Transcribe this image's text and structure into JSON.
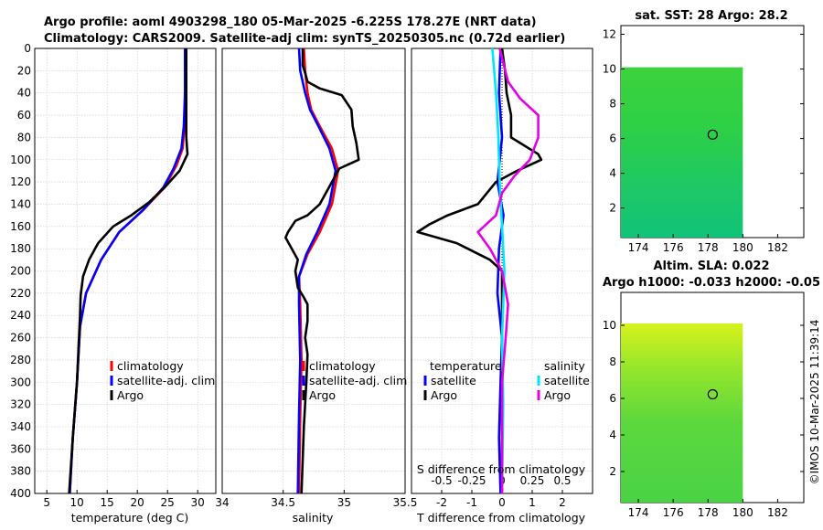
{
  "titles": {
    "line1": "Argo profile: aoml 4903298_180 05-Mar-2025 -6.225S 178.27E (NRT data)",
    "line2": "Climatology: CARS2009. Satellite-adj clim: synTS_20250305.nc (0.72d earlier)"
  },
  "map_titles": {
    "sst": "sat. SST: 28 Argo: 28.2",
    "sla1": "Altim. SLA: 0.022",
    "sla2": "Argo h1000: -0.033 h2000: -0.05"
  },
  "credit": "©IMOS 10-Mar-2025 11:39:14",
  "colors": {
    "climatology": "#ff0000",
    "satellite": "#0000ff",
    "argo": "#000000",
    "sat_salinity": "#00e5ff",
    "argo_salinity": "#e600e6"
  },
  "chart_data": [
    {
      "type": "line",
      "name": "temperature",
      "xlabel": "temperature (deg C)",
      "xlim": [
        3,
        33
      ],
      "xticks": [
        "5",
        "10",
        "15",
        "20",
        "25",
        "30"
      ],
      "ylim": [
        400,
        0
      ],
      "yticks": [
        "0",
        "20",
        "40",
        "60",
        "80",
        "100",
        "120",
        "140",
        "160",
        "180",
        "200",
        "220",
        "240",
        "260",
        "280",
        "300",
        "320",
        "340",
        "360",
        "380",
        "400"
      ],
      "grid": true,
      "legend": [
        "climatology",
        "satellite-adj. clim",
        "Argo"
      ],
      "series": [
        {
          "name": "climatology",
          "points": [
            [
              28,
              0
            ],
            [
              28,
              40
            ],
            [
              27.8,
              70
            ],
            [
              27.5,
              90
            ],
            [
              26.5,
              105
            ],
            [
              24.5,
              125
            ],
            [
              21,
              145
            ],
            [
              17,
              165
            ],
            [
              14,
              190
            ],
            [
              11.5,
              220
            ],
            [
              10.5,
              250
            ],
            [
              10,
              300
            ],
            [
              9.3,
              350
            ],
            [
              8.8,
              400
            ]
          ]
        },
        {
          "name": "satellite-adj. clim",
          "points": [
            [
              27.9,
              0
            ],
            [
              27.9,
              40
            ],
            [
              27.7,
              70
            ],
            [
              27.3,
              90
            ],
            [
              26,
              108
            ],
            [
              24.3,
              125
            ],
            [
              21,
              145
            ],
            [
              17,
              165
            ],
            [
              14,
              190
            ],
            [
              11.5,
              220
            ],
            [
              10.5,
              250
            ],
            [
              10,
              300
            ],
            [
              9.3,
              350
            ],
            [
              8.8,
              400
            ]
          ]
        },
        {
          "name": "Argo",
          "points": [
            [
              28.1,
              0
            ],
            [
              28.1,
              50
            ],
            [
              28.1,
              80
            ],
            [
              28.3,
              95
            ],
            [
              27,
              110
            ],
            [
              24.5,
              125
            ],
            [
              22,
              138
            ],
            [
              19,
              150
            ],
            [
              16,
              160
            ],
            [
              13.5,
              175
            ],
            [
              12,
              190
            ],
            [
              11,
              205
            ],
            [
              10.6,
              222
            ],
            [
              10.5,
              240
            ],
            [
              10,
              300
            ],
            [
              9.3,
              350
            ],
            [
              8.7,
              400
            ]
          ]
        }
      ]
    },
    {
      "type": "line",
      "name": "salinity",
      "xlabel": "salinity",
      "xlim": [
        34,
        35.5
      ],
      "xticks": [
        "34",
        "34.5",
        "35",
        "35.5"
      ],
      "ylim": [
        400,
        0
      ],
      "grid": true,
      "legend": [
        "climatology",
        "satellite-adj. clim",
        "Argo"
      ],
      "series": [
        {
          "name": "climatology",
          "points": [
            [
              34.67,
              0
            ],
            [
              34.68,
              20
            ],
            [
              34.7,
              40
            ],
            [
              34.73,
              55
            ],
            [
              34.8,
              70
            ],
            [
              34.9,
              90
            ],
            [
              34.95,
              110
            ],
            [
              34.9,
              140
            ],
            [
              34.8,
              165
            ],
            [
              34.7,
              185
            ],
            [
              34.63,
              205
            ],
            [
              34.64,
              230
            ],
            [
              34.65,
              280
            ],
            [
              34.64,
              330
            ],
            [
              34.63,
              400
            ]
          ]
        },
        {
          "name": "satellite-adj. clim",
          "points": [
            [
              34.63,
              0
            ],
            [
              34.64,
              20
            ],
            [
              34.68,
              40
            ],
            [
              34.72,
              55
            ],
            [
              34.79,
              70
            ],
            [
              34.88,
              90
            ],
            [
              34.93,
              110
            ],
            [
              34.88,
              140
            ],
            [
              34.78,
              165
            ],
            [
              34.69,
              185
            ],
            [
              34.63,
              205
            ],
            [
              34.63,
              230
            ],
            [
              34.64,
              280
            ],
            [
              34.63,
              330
            ],
            [
              34.62,
              400
            ]
          ]
        },
        {
          "name": "Argo",
          "points": [
            [
              34.66,
              0
            ],
            [
              34.66,
              15
            ],
            [
              34.68,
              22
            ],
            [
              34.7,
              30
            ],
            [
              34.8,
              36
            ],
            [
              34.98,
              42
            ],
            [
              35.06,
              55
            ],
            [
              35.07,
              70
            ],
            [
              35.1,
              85
            ],
            [
              35.12,
              100
            ],
            [
              34.96,
              108
            ],
            [
              34.9,
              120
            ],
            [
              34.8,
              140
            ],
            [
              34.7,
              150
            ],
            [
              34.6,
              155
            ],
            [
              34.54,
              165
            ],
            [
              34.52,
              170
            ],
            [
              34.56,
              178
            ],
            [
              34.62,
              190
            ],
            [
              34.6,
              200
            ],
            [
              34.62,
              215
            ],
            [
              34.66,
              222
            ],
            [
              34.7,
              230
            ],
            [
              34.7,
              245
            ],
            [
              34.68,
              260
            ],
            [
              34.7,
              275
            ],
            [
              34.69,
              300
            ],
            [
              34.67,
              340
            ],
            [
              34.65,
              400
            ]
          ]
        }
      ]
    },
    {
      "type": "line",
      "name": "difference",
      "xlabel": "T difference from climatology",
      "xlabel_top": "S difference from climatology",
      "xlim": [
        -3,
        3
      ],
      "xticks": [
        "-2",
        "-1",
        "0",
        "1",
        "2"
      ],
      "xticks_top": [
        "-0.5",
        "-0.25",
        "0",
        "0.25",
        "0.5"
      ],
      "ylim": [
        400,
        0
      ],
      "grid": true,
      "legend_temperature": {
        "title": "temperature",
        "items": [
          "satellite",
          "Argo"
        ]
      },
      "legend_salinity": {
        "title": "salinity",
        "items": [
          "satellite",
          "Argo"
        ]
      },
      "series": [
        {
          "name": "temperature satellite",
          "points": [
            [
              -0.05,
              0
            ],
            [
              -0.1,
              40
            ],
            [
              0,
              80
            ],
            [
              -0.15,
              120
            ],
            [
              0.05,
              150
            ],
            [
              -0.1,
              180
            ],
            [
              -0.15,
              220
            ],
            [
              0,
              260
            ],
            [
              -0.05,
              300
            ],
            [
              -0.1,
              350
            ],
            [
              -0.05,
              400
            ]
          ]
        },
        {
          "name": "temperature Argo",
          "points": [
            [
              0,
              0
            ],
            [
              0.1,
              20
            ],
            [
              0.15,
              40
            ],
            [
              0.3,
              60
            ],
            [
              0.3,
              80
            ],
            [
              1.2,
              95
            ],
            [
              1.3,
              100
            ],
            [
              0.5,
              110
            ],
            [
              -0.2,
              120
            ],
            [
              -0.8,
              140
            ],
            [
              -1.8,
              150
            ],
            [
              -2.4,
              158
            ],
            [
              -2.8,
              165
            ],
            [
              -1.5,
              175
            ],
            [
              -0.4,
              190
            ],
            [
              0,
              200
            ],
            [
              0,
              300
            ],
            [
              0,
              400
            ]
          ]
        },
        {
          "name": "salinity satellite",
          "points": [
            [
              -0.08,
              0
            ],
            [
              -0.05,
              40
            ],
            [
              -0.03,
              80
            ],
            [
              -0.02,
              120
            ],
            [
              0,
              160
            ],
            [
              0.02,
              200
            ],
            [
              0,
              260
            ],
            [
              0.01,
              320
            ],
            [
              0,
              400
            ]
          ]
        },
        {
          "name": "salinity Argo",
          "points": [
            [
              -0.02,
              0
            ],
            [
              0.05,
              30
            ],
            [
              0.15,
              45
            ],
            [
              0.3,
              60
            ],
            [
              0.3,
              80
            ],
            [
              0.23,
              100
            ],
            [
              0.1,
              115
            ],
            [
              0,
              130
            ],
            [
              -0.05,
              150
            ],
            [
              -0.2,
              165
            ],
            [
              -0.1,
              180
            ],
            [
              0,
              200
            ],
            [
              0.05,
              230
            ],
            [
              0.03,
              260
            ],
            [
              0,
              300
            ],
            [
              0,
              400
            ]
          ]
        }
      ]
    },
    {
      "type": "heatmap",
      "name": "sst_map",
      "xticks": [
        "174",
        "176",
        "178",
        "180",
        "182"
      ],
      "yticks": [
        "2",
        "4",
        "6",
        "8",
        "10",
        "12"
      ],
      "xlim": [
        173,
        183.5
      ],
      "ylim": [
        0.3,
        12.5
      ],
      "data_extent": {
        "x": [
          173,
          180
        ],
        "y": [
          0.3,
          10.1
        ]
      },
      "marker": {
        "x": 178.27,
        "y": 6.225
      }
    },
    {
      "type": "heatmap",
      "name": "sla_map",
      "xticks": [
        "174",
        "176",
        "178",
        "180",
        "182"
      ],
      "yticks": [
        "2",
        "4",
        "6",
        "8",
        "10"
      ],
      "xlim": [
        173,
        183.5
      ],
      "ylim": [
        0.3,
        11.8
      ],
      "data_extent": {
        "x": [
          173,
          180
        ],
        "y": [
          0.3,
          10.1
        ]
      },
      "marker": {
        "x": 178.27,
        "y": 6.225
      }
    }
  ]
}
